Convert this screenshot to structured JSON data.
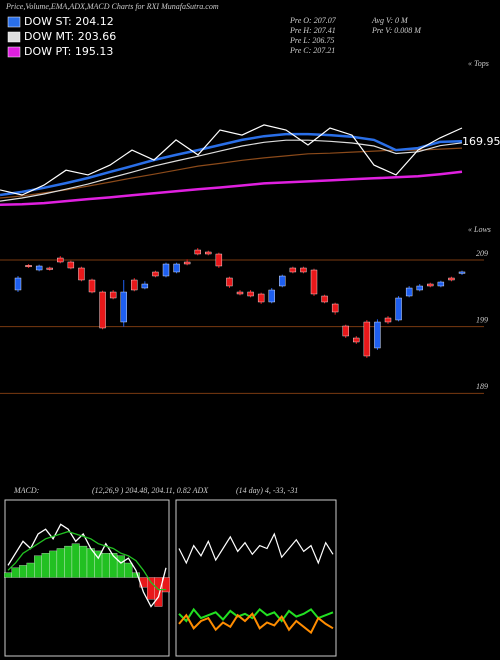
{
  "header": {
    "title": "Price,Volume,EMA,ADX,MACD Charts for RXI MunafaSutra.com",
    "info": [
      "Pre  O: 207.07",
      "Pre  H: 207.41",
      "Pre  L: 206.75",
      "Pre  C: 207.21",
      "Avg  V: 0  M",
      "Pre  V: 0.008  M"
    ],
    "macd_label": "MACD:",
    "macd_text": "(12,26,9 ) 204.48, 204.11, 0.82  ADX",
    "adx_text": "(14  day) 4, -33, -31"
  },
  "chart_data": [
    {
      "type": "line",
      "ylim": [
        178,
        228
      ],
      "annotations": [
        "169.95",
        "« Tops",
        "« Lows"
      ],
      "series": [
        {
          "color": "#8b4a1a",
          "values": [
            187.4,
            188.0,
            188.9,
            189.8,
            190.9,
            192.1,
            193.3,
            194.4,
            195.6,
            196.8,
            197.6,
            198.5,
            199.2,
            199.8,
            200.4,
            200.6,
            200.9,
            201.2,
            201.5,
            201.5,
            201.8,
            202.1
          ]
        },
        {
          "name": "DOW PT: 195.13",
          "color": "#e020e0",
          "values": [
            185.4,
            185.6,
            185.9,
            186.5,
            187.1,
            187.6,
            188.2,
            188.8,
            189.4,
            190.0,
            190.5,
            191.1,
            191.7,
            192.0,
            192.3,
            192.6,
            192.9,
            193.2,
            193.5,
            193.8,
            194.4,
            195.13
          ]
        },
        {
          "name": "DOW MT: 203.66",
          "color": "#dddddd",
          "values": [
            186.5,
            187.4,
            188.6,
            190.0,
            191.5,
            193.3,
            195.0,
            196.8,
            198.3,
            199.7,
            201.2,
            202.7,
            203.8,
            204.4,
            204.4,
            204.1,
            203.6,
            202.7,
            200.5,
            201.0,
            202.8,
            203.66
          ]
        },
        {
          "name": "DOW ST: 204.12",
          "color": "#2a6fe8",
          "values": [
            188.3,
            189.2,
            190.4,
            191.8,
            193.3,
            195.1,
            196.8,
            198.6,
            200.1,
            201.5,
            203.0,
            204.5,
            205.6,
            206.2,
            206.2,
            205.9,
            205.4,
            204.5,
            201.5,
            202.1,
            203.9,
            204.12
          ]
        },
        {
          "color": "#ffffff",
          "values": [
            189.8,
            188.3,
            191.2,
            195.6,
            194.2,
            197.1,
            201.5,
            198.6,
            204.5,
            200.1,
            207.4,
            205.9,
            208.9,
            207.4,
            203.0,
            208.0,
            205.9,
            197.1,
            194.2,
            201.5,
            205.1,
            208.0
          ]
        }
      ]
    },
    {
      "type": "candlestick",
      "ylim": [
        182,
        212
      ],
      "yticks": [
        189,
        199,
        209
      ],
      "grid": true,
      "up_color": "#1e5ff0",
      "down_color": "#e8181a",
      "open": [
        204.5,
        208.2,
        207.5,
        207.8,
        209.3,
        208.7,
        207.8,
        206.0,
        204.2,
        204.2,
        199.7,
        206.0,
        204.8,
        207.2,
        206.6,
        207.2,
        208.7,
        210.5,
        210.2,
        209.9,
        206.3,
        204.2,
        204.2,
        203.9,
        202.7,
        205.1,
        207.8,
        207.8,
        207.5,
        203.6,
        202.4,
        199.1,
        197.3,
        199.7,
        195.8,
        200.3,
        200.0,
        203.6,
        204.5,
        205.4,
        205.1,
        206.3,
        207.07
      ],
      "high": [
        206.6,
        208.4,
        208.3,
        208.0,
        209.6,
        208.9,
        208.0,
        206.2,
        204.4,
        204.5,
        206.0,
        206.3,
        205.8,
        207.4,
        208.6,
        208.6,
        209.1,
        210.8,
        210.4,
        210.1,
        206.5,
        204.5,
        204.5,
        204.1,
        204.8,
        206.8,
        208.0,
        208.0,
        207.7,
        203.8,
        202.6,
        199.3,
        197.6,
        200.0,
        200.1,
        200.6,
        203.6,
        205.1,
        205.4,
        205.6,
        205.9,
        206.5,
        207.41
      ],
      "low": [
        204.2,
        207.8,
        207.3,
        207.4,
        208.5,
        207.6,
        205.8,
        204.0,
        198.6,
        203.1,
        199.0,
        204.3,
        204.6,
        206.4,
        206.4,
        207.0,
        208.2,
        209.7,
        209.7,
        207.8,
        204.8,
        203.7,
        203.4,
        202.4,
        202.5,
        204.9,
        207.0,
        207.0,
        203.6,
        202.5,
        200.8,
        197.3,
        196.4,
        194.3,
        195.5,
        199.4,
        199.8,
        203.4,
        204.3,
        204.9,
        204.9,
        205.8,
        206.75
      ],
      "close": [
        206.3,
        208.0,
        208.1,
        207.6,
        208.7,
        207.8,
        206.0,
        204.2,
        198.8,
        203.3,
        204.2,
        204.5,
        205.4,
        206.6,
        208.4,
        208.4,
        208.4,
        209.9,
        209.9,
        208.1,
        205.1,
        203.9,
        203.6,
        202.7,
        204.5,
        206.6,
        207.2,
        207.2,
        203.9,
        202.7,
        201.2,
        197.6,
        196.7,
        194.6,
        199.7,
        199.7,
        203.3,
        204.8,
        205.1,
        205.1,
        205.7,
        206.0,
        207.21
      ]
    },
    {
      "type": "macd",
      "ylim": [
        -3,
        3
      ],
      "up_color": "#22c022",
      "down_color": "#e8181a",
      "histogram": [
        0.2,
        0.4,
        0.5,
        0.6,
        0.9,
        1.0,
        1.1,
        1.2,
        1.3,
        1.4,
        1.3,
        1.2,
        1.1,
        1.0,
        1.0,
        0.9,
        0.6,
        0.2,
        -0.4,
        -0.9,
        -1.2,
        -0.6
      ],
      "series": [
        {
          "color": "#ffffff",
          "values": [
            0.5,
            1.0,
            1.5,
            1.2,
            1.8,
            2.0,
            1.6,
            2.2,
            2.0,
            1.5,
            1.8,
            1.2,
            0.8,
            1.4,
            0.9,
            0.6,
            0.8,
            0.3,
            -0.6,
            -1.2,
            -0.8,
            0.4
          ]
        },
        {
          "color": "#22c022",
          "values": [
            0.3,
            0.6,
            1.0,
            1.2,
            1.4,
            1.6,
            1.7,
            1.8,
            1.9,
            1.8,
            1.7,
            1.6,
            1.4,
            1.3,
            1.2,
            1.0,
            0.9,
            0.7,
            0.3,
            -0.2,
            -0.5,
            -0.5
          ]
        }
      ]
    },
    {
      "type": "adx",
      "ylim": [
        0,
        100
      ],
      "series": [
        {
          "color": "#ffffff",
          "values": [
            70,
            60,
            72,
            65,
            75,
            62,
            70,
            78,
            68,
            74,
            66,
            72,
            70,
            80,
            64,
            70,
            76,
            68,
            72,
            60,
            74,
            66
          ]
        },
        {
          "color": "#22e022",
          "values": [
            25,
            20,
            28,
            22,
            24,
            26,
            21,
            27,
            23,
            25,
            22,
            28,
            24,
            26,
            20,
            27,
            23,
            25,
            28,
            22,
            24,
            26
          ]
        },
        {
          "color": "#ff8c00",
          "values": [
            18,
            24,
            15,
            20,
            22,
            14,
            19,
            16,
            24,
            20,
            25,
            15,
            19,
            17,
            23,
            14,
            20,
            16,
            12,
            22,
            18,
            15
          ]
        }
      ]
    }
  ]
}
